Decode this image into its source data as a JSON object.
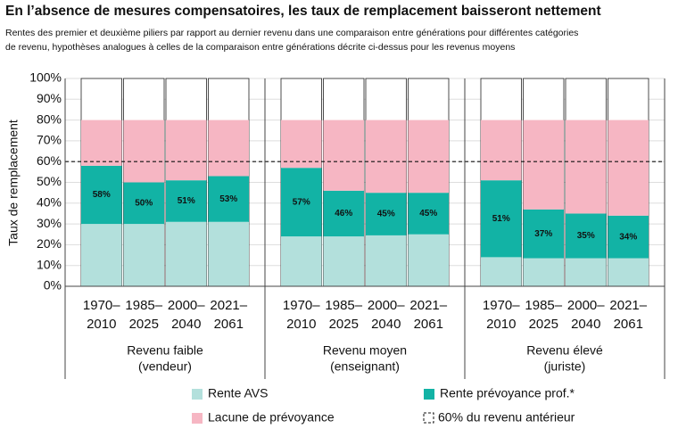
{
  "chart_data": {
    "type": "stacked_bar",
    "title": "En l’absence de mesures compensatoires, les taux de remplacement baisseront nettement",
    "subtitle": [
      "Rentes des premier et deuxième piliers par rapport au dernier revenu dans une comparaison entre générations pour différentes catégories",
      "de revenu, hypothèses analogues à celles de la comparaison entre générations décrite ci-dessus pour les revenus moyens"
    ],
    "y_label": "Taux de remplacement",
    "categories": [
      [
        "1970–",
        "2010"
      ],
      [
        "1985–",
        "2025"
      ],
      [
        "2000–",
        "2040"
      ],
      [
        "2021–",
        "2061"
      ],
      [
        "1970–",
        "2010"
      ],
      [
        "1985–",
        "2025"
      ],
      [
        "2000–",
        "2040"
      ],
      [
        "2021–",
        "2061"
      ],
      [
        "1970–",
        "2010"
      ],
      [
        "1985–",
        "2025"
      ],
      [
        "2000–",
        "2040"
      ],
      [
        "2021–",
        "2061"
      ]
    ],
    "groups": [
      [
        "Revenu faible",
        "(vendeur)"
      ],
      [
        "Revenu moyen",
        "(enseignant)"
      ],
      [
        "Revenu élevé",
        "(juriste)"
      ]
    ],
    "series": [
      {
        "name": "Rente AVS",
        "color": "#b3e0dc",
        "values": [
          30,
          30,
          31,
          31,
          24,
          24,
          24.5,
          25,
          14,
          13.5,
          13.5,
          13.5
        ]
      },
      {
        "name": "Rente prévoyance prof.*",
        "color": "#12b3a5",
        "values": [
          28,
          20,
          20,
          22,
          33,
          22,
          20.5,
          20,
          37,
          23.5,
          21.5,
          20.5
        ]
      },
      {
        "name": "Lacune de prévoyance",
        "color": "#f6b6c3",
        "values": [
          22,
          30,
          29,
          27,
          23,
          34,
          35,
          35,
          29,
          43,
          45,
          46
        ]
      }
    ],
    "totals": {
      "values": [
        58,
        50,
        51,
        53,
        57,
        46,
        45,
        45,
        51,
        37,
        35,
        34
      ],
      "value_labels": [
        "58%",
        "50%",
        "51%",
        "53%",
        "57%",
        "46%",
        "45%",
        "45%",
        "51%",
        "37%",
        "35%",
        "34%"
      ]
    },
    "reference_line": {
      "value": 60,
      "label": "60% du revenu antérieur"
    },
    "ylim": [
      0,
      100
    ],
    "yticks": [
      {
        "value": 0,
        "label": "0%"
      },
      {
        "value": 10,
        "label": "10%"
      },
      {
        "value": 20,
        "label": "20%"
      },
      {
        "value": 30,
        "label": "30%"
      },
      {
        "value": 40,
        "label": "40%"
      },
      {
        "value": 50,
        "label": "50%"
      },
      {
        "value": 60,
        "label": "60%"
      },
      {
        "value": 70,
        "label": "70%"
      },
      {
        "value": 80,
        "label": "80%"
      },
      {
        "value": 90,
        "label": "90%"
      },
      {
        "value": 100,
        "label": "100%"
      }
    ]
  }
}
